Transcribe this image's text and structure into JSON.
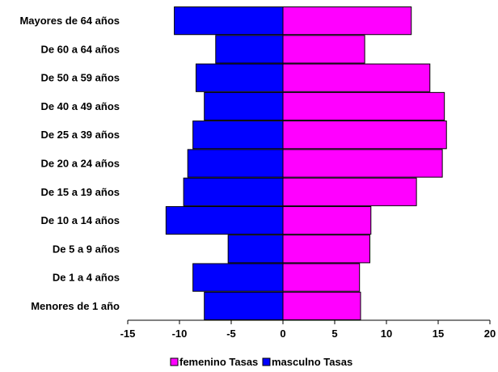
{
  "chart_data": {
    "type": "bar",
    "orientation": "horizontal",
    "stacked": false,
    "categories": [
      "Mayores de 64 años",
      "De 60 a 64 años",
      "De 50 a 59 años",
      "De 40 a 49 años",
      "De 25 a 39 años",
      "De 20 a 24 años",
      "De 15 a 19 años",
      "De 10 a 14 años",
      "De 5 a 9 años",
      "De 1 a 4 años",
      "Menores de 1 año"
    ],
    "series": [
      {
        "name": "femenino Tasas",
        "color": "#ff00ff",
        "values": [
          12.4,
          7.9,
          14.2,
          15.6,
          15.8,
          15.4,
          12.9,
          8.5,
          8.4,
          7.4,
          7.5
        ]
      },
      {
        "name": "masculno Tasas",
        "color": "#0000ff",
        "values": [
          -10.5,
          -6.5,
          -8.4,
          -7.6,
          -8.7,
          -9.2,
          -9.6,
          -11.3,
          -5.3,
          -8.7,
          -7.6
        ]
      }
    ],
    "xlim": [
      -15,
      20
    ],
    "xticks": [
      -15,
      -10,
      -5,
      0,
      5,
      10,
      15,
      20
    ],
    "legend_position": "bottom",
    "grid": false
  }
}
